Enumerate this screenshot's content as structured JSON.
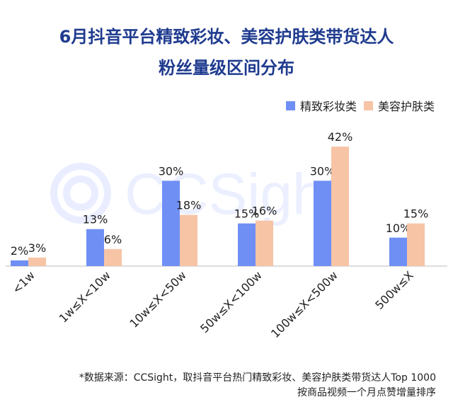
{
  "title_line1": "6月抖音平台精致彩妆、美容护肤类带货达人",
  "title_line2": "粉丝量级区间分布",
  "watermark": "CCSight",
  "footnote_line1": "*数据来源：CCSight，取抖音平台热门精致彩妆、美容护肤类带货达人Top 1000",
  "footnote_line2": "按商品视频一个月点赞增量排序",
  "colors": {
    "series1": "#6f8ff5",
    "series2": "#f7c4a6",
    "axis": "#bbbbbb"
  },
  "chart_data": {
    "type": "bar",
    "title": "6月抖音平台精致彩妆、美容护肤类带货达人 粉丝量级区间分布",
    "categories": [
      "<1w",
      "1w≤X<10w",
      "10w≤X<50w",
      "50w≤X<100w",
      "100w≤X<500w",
      "500w≤X"
    ],
    "series": [
      {
        "name": "精致彩妆类",
        "values": [
          2,
          13,
          30,
          15,
          30,
          10
        ],
        "labels": [
          "2%",
          "13%",
          "30%",
          "15%",
          "30%",
          "10%"
        ]
      },
      {
        "name": "美容护肤类",
        "values": [
          3,
          6,
          18,
          16,
          42,
          15
        ],
        "labels": [
          "3%",
          "6%",
          "18%",
          "16%",
          "42%",
          "15%"
        ]
      }
    ],
    "unit": "%",
    "ylim": [
      0,
      45
    ],
    "grid": false,
    "legend": "top-right"
  }
}
